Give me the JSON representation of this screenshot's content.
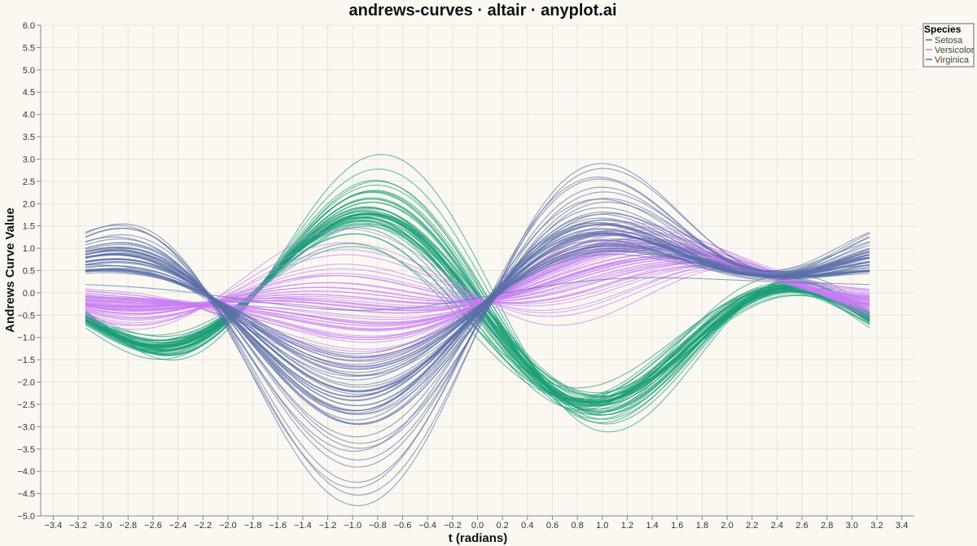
{
  "chart_data": {
    "type": "line",
    "title": "andrews-curves · altair · anyplot.ai",
    "xlabel": "t (radians)",
    "ylabel": "Andrews Curve Value",
    "xlim": [
      -3.5,
      3.5
    ],
    "ylim": [
      -5.0,
      6.0
    ],
    "x_ticks": [
      "−3.4",
      "−3.2",
      "−3.0",
      "−2.8",
      "−2.6",
      "−2.4",
      "−2.2",
      "−2.0",
      "−1.8",
      "−1.6",
      "−1.4",
      "−1.2",
      "−1.0",
      "−0.8",
      "−0.6",
      "−0.4",
      "−0.2",
      "0.0",
      "0.2",
      "0.4",
      "0.6",
      "0.8",
      "1.0",
      "1.2",
      "1.4",
      "1.6",
      "1.8",
      "2.0",
      "2.2",
      "2.4",
      "2.6",
      "2.8",
      "3.0",
      "3.2",
      "3.4"
    ],
    "y_ticks": [
      "6.0",
      "5.5",
      "5.0",
      "4.5",
      "4.0",
      "3.5",
      "3.0",
      "2.5",
      "2.0",
      "1.5",
      "1.0",
      "0.5",
      "0.0",
      "−0.5",
      "−1.0",
      "−1.5",
      "−2.0",
      "−2.5",
      "−3.0",
      "−3.5",
      "−4.0",
      "−4.5",
      "−5.0"
    ],
    "grid": true,
    "legend_position": "top-right",
    "legend_title": "Species",
    "series": [
      {
        "name": "Setosa",
        "color": "#1a9e77",
        "coefficients": [
          [
            -0.63,
            -1.05,
            0.17,
            -1.3,
            0.0
          ],
          [
            -0.68,
            -0.97,
            0.04,
            -1.4,
            -0.1
          ],
          [
            -0.55,
            -1.1,
            0.25,
            -1.2,
            0.1
          ],
          [
            -0.7,
            -0.9,
            -0.05,
            -1.45,
            -0.15
          ],
          [
            -0.6,
            -1.15,
            0.2,
            -1.35,
            0.05
          ],
          [
            -0.5,
            -1.25,
            0.3,
            -1.55,
            0.2
          ],
          [
            -0.66,
            -1.0,
            0.1,
            -1.25,
            -0.05
          ],
          [
            -0.62,
            -1.08,
            0.15,
            -1.38,
            0.0
          ],
          [
            -0.73,
            -0.85,
            -0.1,
            -1.2,
            -0.2
          ],
          [
            -0.64,
            -1.02,
            0.12,
            -1.42,
            -0.08
          ],
          [
            -0.52,
            -1.2,
            0.28,
            -1.6,
            0.15
          ],
          [
            -0.65,
            -1.06,
            0.18,
            -1.33,
            0.02
          ],
          [
            -0.69,
            -0.95,
            0.0,
            -1.28,
            -0.12
          ],
          [
            -0.8,
            -0.8,
            -0.2,
            -1.1,
            -0.25
          ],
          [
            -0.4,
            -1.4,
            0.45,
            -1.75,
            0.3
          ],
          [
            -0.35,
            -1.5,
            0.55,
            -1.9,
            0.4
          ],
          [
            -0.48,
            -1.3,
            0.38,
            -1.65,
            0.25
          ],
          [
            -0.61,
            -1.09,
            0.16,
            -1.36,
            0.03
          ],
          [
            -0.45,
            -1.28,
            0.35,
            -1.58,
            0.22
          ],
          [
            -0.57,
            -1.18,
            0.26,
            -1.48,
            0.12
          ],
          [
            -0.54,
            -1.12,
            0.22,
            -1.3,
            0.08
          ],
          [
            -0.58,
            -1.16,
            0.24,
            -1.44,
            0.1
          ],
          [
            -0.75,
            -1.1,
            0.2,
            -1.5,
            -0.05
          ],
          [
            -0.56,
            -0.98,
            0.1,
            -1.15,
            0.05
          ],
          [
            -0.6,
            -0.92,
            0.05,
            -1.2,
            0.0
          ],
          [
            -0.62,
            -0.96,
            0.02,
            -1.26,
            -0.06
          ],
          [
            -0.59,
            -1.04,
            0.14,
            -1.22,
            0.02
          ],
          [
            -0.61,
            -1.07,
            0.18,
            -1.32,
            0.04
          ],
          [
            -0.63,
            -1.03,
            0.14,
            -1.34,
            0.01
          ],
          [
            -0.66,
            -0.99,
            0.08,
            -1.3,
            -0.04
          ],
          [
            -0.64,
            -1.0,
            0.06,
            -1.33,
            -0.06
          ],
          [
            -0.55,
            -1.05,
            0.22,
            -1.25,
            0.08
          ],
          [
            -0.58,
            -1.22,
            0.26,
            -1.62,
            0.14
          ],
          [
            -0.5,
            -1.32,
            0.34,
            -1.7,
            0.2
          ],
          [
            -0.64,
            -1.01,
            0.11,
            -1.39,
            -0.07
          ],
          [
            -0.67,
            -1.03,
            0.13,
            -1.31,
            -0.02
          ],
          [
            -0.52,
            -1.14,
            0.26,
            -1.4,
            0.12
          ],
          [
            -0.66,
            -1.08,
            0.19,
            -1.46,
            -0.01
          ],
          [
            -0.76,
            -0.88,
            -0.08,
            -1.18,
            -0.22
          ],
          [
            -0.6,
            -1.06,
            0.16,
            -1.31,
            0.03
          ],
          [
            -0.62,
            -1.1,
            0.18,
            -1.28,
            0.05
          ],
          [
            -0.7,
            -0.75,
            -0.15,
            -1.0,
            -0.18
          ],
          [
            -0.74,
            -0.95,
            0.0,
            -1.22,
            -0.18
          ],
          [
            -0.58,
            -1.08,
            0.2,
            -1.2,
            0.06
          ],
          [
            -0.52,
            -1.24,
            0.3,
            -1.52,
            0.12
          ],
          [
            -0.68,
            -0.98,
            0.08,
            -1.28,
            -0.08
          ],
          [
            -0.57,
            -1.19,
            0.26,
            -1.5,
            0.12
          ],
          [
            -0.7,
            -1.0,
            0.1,
            -1.36,
            -0.12
          ],
          [
            -0.56,
            -1.18,
            0.24,
            -1.48,
            0.1
          ],
          [
            -0.62,
            -1.05,
            0.14,
            -1.32,
            0.0
          ]
        ]
      },
      {
        "name": "Versicolor",
        "color": "#c77cf2",
        "coefficients": [
          [
            0.02,
            0.9,
            -0.1,
            0.35,
            -0.2
          ],
          [
            0.05,
            0.7,
            -0.05,
            0.2,
            -0.25
          ],
          [
            0.0,
            1.05,
            -0.15,
            0.4,
            -0.18
          ],
          [
            0.1,
            0.2,
            0.1,
            -0.3,
            -0.35
          ],
          [
            0.04,
            0.65,
            -0.02,
            0.1,
            -0.28
          ],
          [
            0.08,
            0.45,
            0.05,
            -0.05,
            -0.3
          ],
          [
            0.06,
            0.8,
            -0.08,
            0.25,
            -0.22
          ],
          [
            0.15,
            -0.1,
            0.2,
            -0.55,
            -0.4
          ],
          [
            0.03,
            0.7,
            -0.04,
            0.15,
            -0.26
          ],
          [
            0.09,
            0.25,
            0.08,
            -0.2,
            -0.32
          ],
          [
            0.14,
            -0.05,
            0.18,
            -0.5,
            -0.38
          ],
          [
            0.05,
            0.5,
            0.0,
            0.05,
            -0.28
          ],
          [
            0.07,
            0.3,
            0.06,
            -0.15,
            -0.32
          ],
          [
            0.04,
            0.75,
            -0.06,
            0.2,
            -0.24
          ],
          [
            0.1,
            0.15,
            0.1,
            -0.25,
            -0.34
          ],
          [
            0.01,
            0.85,
            -0.1,
            0.3,
            -0.2
          ],
          [
            0.06,
            0.55,
            0.0,
            0.1,
            -0.27
          ],
          [
            0.08,
            0.35,
            0.05,
            -0.1,
            -0.3
          ],
          [
            0.03,
            0.95,
            -0.12,
            0.3,
            -0.19
          ],
          [
            0.09,
            0.25,
            0.08,
            -0.18,
            -0.33
          ],
          [
            0.02,
            0.85,
            -0.08,
            0.35,
            -0.18
          ],
          [
            0.06,
            0.45,
            0.02,
            0.02,
            -0.29
          ],
          [
            0.01,
            1.2,
            -0.2,
            0.45,
            -0.15
          ],
          [
            0.04,
            0.7,
            -0.05,
            0.2,
            -0.24
          ],
          [
            0.03,
            0.75,
            -0.06,
            0.25,
            -0.22
          ],
          [
            0.02,
            0.9,
            -0.1,
            0.3,
            -0.2
          ],
          [
            0.0,
            1.1,
            -0.16,
            0.4,
            -0.16
          ],
          [
            -0.02,
            1.3,
            -0.22,
            0.55,
            -0.12
          ],
          [
            0.05,
            0.65,
            -0.03,
            0.15,
            -0.26
          ],
          [
            0.12,
            0.05,
            0.15,
            -0.4,
            -0.36
          ],
          [
            0.1,
            0.15,
            0.12,
            -0.3,
            -0.34
          ],
          [
            0.11,
            0.1,
            0.14,
            -0.35,
            -0.35
          ],
          [
            0.08,
            0.35,
            0.05,
            -0.1,
            -0.3
          ],
          [
            0.0,
            1.15,
            -0.18,
            0.45,
            -0.14
          ],
          [
            0.06,
            0.45,
            0.02,
            0.05,
            -0.28
          ],
          [
            0.03,
            0.8,
            -0.08,
            0.25,
            -0.22
          ],
          [
            0.01,
            0.95,
            -0.12,
            0.35,
            -0.19
          ],
          [
            0.05,
            0.75,
            -0.06,
            0.2,
            -0.23
          ],
          [
            0.09,
            0.3,
            0.06,
            -0.12,
            -0.31
          ],
          [
            0.08,
            0.4,
            0.04,
            -0.05,
            -0.3
          ],
          [
            0.07,
            0.5,
            0.02,
            0.0,
            -0.29
          ],
          [
            0.04,
            0.7,
            -0.04,
            0.18,
            -0.25
          ],
          [
            0.08,
            0.4,
            0.04,
            -0.06,
            -0.29
          ],
          [
            0.16,
            -0.2,
            0.22,
            -0.6,
            -0.42
          ],
          [
            0.07,
            0.45,
            0.02,
            -0.02,
            -0.29
          ],
          [
            0.06,
            0.5,
            0.0,
            0.06,
            -0.27
          ],
          [
            0.06,
            0.55,
            0.0,
            0.08,
            -0.27
          ],
          [
            0.03,
            0.8,
            -0.08,
            0.22,
            -0.23
          ],
          [
            0.18,
            -0.35,
            0.25,
            -0.75,
            -0.45
          ],
          [
            0.06,
            0.5,
            0.0,
            0.04,
            -0.28
          ]
        ]
      },
      {
        "name": "Virginica",
        "color": "#5a6fa8",
        "coefficients": [
          [
            -0.1,
            1.4,
            -0.65,
            1.05,
            0.35
          ],
          [
            -0.05,
            1.0,
            -0.45,
            0.6,
            0.1
          ],
          [
            -0.12,
            1.6,
            -0.75,
            1.1,
            0.2
          ],
          [
            -0.08,
            1.25,
            -0.6,
            0.85,
            0.15
          ],
          [
            -0.1,
            1.4,
            -0.68,
            1.0,
            0.25
          ],
          [
            -0.18,
            2.0,
            -0.9,
            1.45,
            0.3
          ],
          [
            0.05,
            0.3,
            -0.15,
            0.1,
            0.0
          ],
          [
            -0.16,
            1.8,
            -0.85,
            1.3,
            0.22
          ],
          [
            -0.12,
            1.45,
            -0.7,
            1.05,
            0.18
          ],
          [
            -0.14,
            1.9,
            -0.85,
            1.35,
            0.4
          ],
          [
            -0.06,
            1.05,
            -0.48,
            0.75,
            0.2
          ],
          [
            -0.08,
            1.15,
            -0.55,
            0.8,
            0.14
          ],
          [
            -0.1,
            1.35,
            -0.62,
            0.98,
            0.22
          ],
          [
            -0.04,
            0.95,
            -0.42,
            0.55,
            0.12
          ],
          [
            -0.06,
            1.1,
            -0.5,
            0.62,
            0.16
          ],
          [
            -0.08,
            1.25,
            -0.58,
            0.88,
            0.26
          ],
          [
            -0.08,
            1.2,
            -0.58,
            0.82,
            0.16
          ],
          [
            -0.2,
            2.3,
            -1.0,
            1.7,
            0.5
          ],
          [
            -0.24,
            2.5,
            -1.1,
            1.9,
            0.4
          ],
          [
            -0.02,
            0.85,
            -0.4,
            0.5,
            0.05
          ],
          [
            -0.12,
            1.55,
            -0.72,
            1.15,
            0.28
          ],
          [
            -0.03,
            0.9,
            -0.4,
            0.52,
            0.1
          ],
          [
            -0.22,
            2.4,
            -1.05,
            1.8,
            0.35
          ],
          [
            -0.04,
            0.95,
            -0.44,
            0.6,
            0.1
          ],
          [
            -0.1,
            1.45,
            -0.68,
            1.05,
            0.26
          ],
          [
            -0.14,
            1.7,
            -0.8,
            1.25,
            0.3
          ],
          [
            -0.02,
            0.9,
            -0.42,
            0.55,
            0.08
          ],
          [
            -0.01,
            0.85,
            -0.4,
            0.52,
            0.1
          ],
          [
            -0.08,
            1.2,
            -0.56,
            0.84,
            0.18
          ],
          [
            -0.12,
            1.55,
            -0.72,
            1.18,
            0.22
          ],
          [
            -0.16,
            1.85,
            -0.86,
            1.36,
            0.24
          ],
          [
            -0.2,
            2.2,
            -0.98,
            1.7,
            0.42
          ],
          [
            -0.08,
            1.2,
            -0.58,
            0.84,
            0.18
          ],
          [
            -0.04,
            0.95,
            -0.42,
            0.6,
            0.1
          ],
          [
            -0.06,
            1.05,
            -0.48,
            0.7,
            0.06
          ],
          [
            -0.18,
            2.05,
            -0.92,
            1.55,
            0.34
          ],
          [
            -0.08,
            1.25,
            -0.6,
            0.86,
            0.26
          ],
          [
            -0.06,
            1.15,
            -0.52,
            0.78,
            0.14
          ],
          [
            -0.01,
            0.8,
            -0.38,
            0.48,
            0.1
          ],
          [
            -0.09,
            1.35,
            -0.62,
            0.98,
            0.24
          ],
          [
            -0.1,
            1.4,
            -0.64,
            1.02,
            0.28
          ],
          [
            -0.08,
            1.3,
            -0.6,
            0.92,
            0.26
          ],
          [
            -0.05,
            1.0,
            -0.45,
            0.6,
            0.1
          ],
          [
            -0.12,
            1.5,
            -0.7,
            1.1,
            0.3
          ],
          [
            -0.1,
            1.4,
            -0.66,
            1.0,
            0.32
          ],
          [
            -0.08,
            1.3,
            -0.6,
            0.9,
            0.26
          ],
          [
            -0.04,
            1.05,
            -0.48,
            0.68,
            0.12
          ],
          [
            -0.07,
            1.2,
            -0.56,
            0.82,
            0.2
          ],
          [
            -0.08,
            1.25,
            -0.58,
            0.86,
            0.28
          ],
          [
            -0.05,
            1.0,
            -0.46,
            0.66,
            0.14
          ]
        ]
      }
    ]
  }
}
